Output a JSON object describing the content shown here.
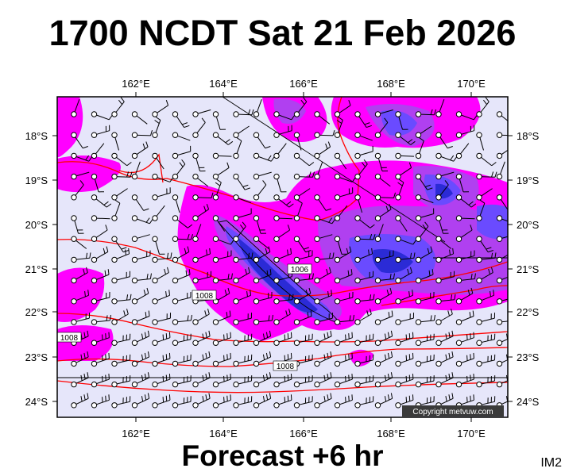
{
  "header": {
    "title": "1700 NCDT Sat 21 Feb 2026"
  },
  "footer": {
    "label": "Forecast +6 hr",
    "corner": "IM2"
  },
  "map": {
    "lon_labels": [
      "162°E",
      "164°E",
      "166°E",
      "168°E",
      "170°E"
    ],
    "lat_labels": [
      "18°S",
      "19°S",
      "20°S",
      "21°S",
      "22°S",
      "23°S",
      "24°S"
    ],
    "isobar_labels": [
      "1006",
      "1008",
      "1008",
      "1008"
    ],
    "copyright": "Copyright metvuw.com"
  },
  "colors": {
    "background": "#e6e6fa",
    "rain_light": "#ff00ff",
    "rain_mid": "#b040f0",
    "rain_heavy": "#6a4bff",
    "rain_core": "#2b2bd6",
    "isobar": "#ff0000"
  }
}
